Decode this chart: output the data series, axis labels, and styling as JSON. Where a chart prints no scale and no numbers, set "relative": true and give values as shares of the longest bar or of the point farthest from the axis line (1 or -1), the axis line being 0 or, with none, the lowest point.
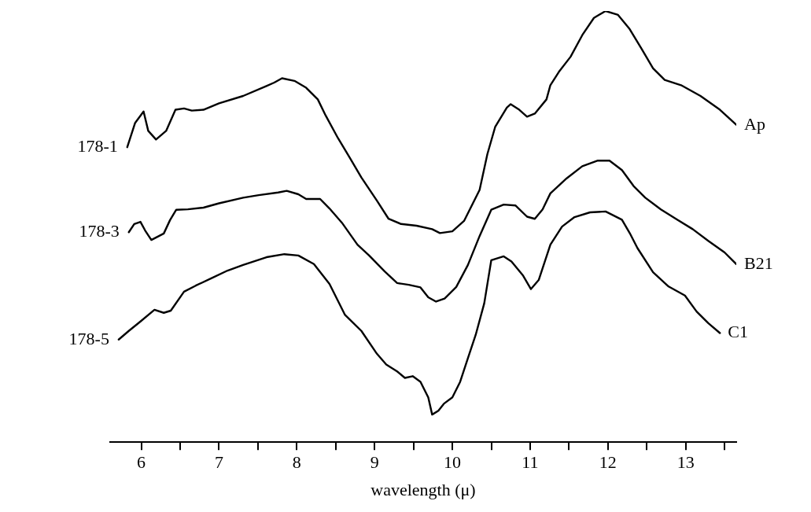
{
  "chart_data": {
    "type": "line",
    "relative": true,
    "xlabel": "wavelength (μ)",
    "xlim": [
      5.6,
      13.65
    ],
    "xticks": [
      6,
      {
        "value": 6.5,
        "label": null
      },
      7,
      {
        "value": 7.5,
        "label": null
      },
      8,
      {
        "value": 8.5,
        "label": null
      },
      9,
      {
        "value": 9.5,
        "label": null
      },
      10,
      {
        "value": 10.5,
        "label": null
      },
      11,
      {
        "value": 11.5,
        "label": null
      },
      12,
      {
        "value": 12.5,
        "label": null
      },
      13,
      {
        "value": 13.5,
        "label": null
      }
    ],
    "tick_labels": "x",
    "grid": false,
    "legend": false,
    "marker": "none",
    "line_style": "solid",
    "annotations": [
      "178-1",
      "178-3",
      "178-5"
    ],
    "series": [
      {
        "name": "Ap",
        "color": "#000000",
        "x": [
          5.82,
          5.92,
          6.03,
          6.09,
          6.19,
          6.32,
          6.44,
          6.55,
          6.65,
          6.8,
          7.0,
          7.31,
          7.61,
          7.71,
          7.81,
          7.97,
          8.12,
          8.27,
          8.37,
          8.53,
          8.68,
          8.83,
          9.03,
          9.18,
          9.34,
          9.54,
          9.74,
          9.84,
          10.0,
          10.15,
          10.35,
          10.45,
          10.55,
          10.7,
          10.75,
          10.86,
          10.96,
          11.06,
          11.21,
          11.26,
          11.37,
          11.52,
          11.67,
          11.82,
          11.97,
          12.13,
          12.28,
          12.43,
          12.58,
          12.73,
          12.94,
          13.19,
          13.44,
          13.65
        ],
        "values": [
          0.684,
          0.74,
          0.767,
          0.722,
          0.702,
          0.722,
          0.771,
          0.774,
          0.769,
          0.771,
          0.786,
          0.803,
          0.826,
          0.834,
          0.844,
          0.838,
          0.822,
          0.795,
          0.758,
          0.705,
          0.66,
          0.614,
          0.56,
          0.518,
          0.506,
          0.502,
          0.494,
          0.485,
          0.489,
          0.513,
          0.585,
          0.668,
          0.731,
          0.776,
          0.784,
          0.771,
          0.755,
          0.762,
          0.795,
          0.828,
          0.859,
          0.894,
          0.944,
          0.984,
          1.0,
          0.991,
          0.958,
          0.913,
          0.867,
          0.84,
          0.828,
          0.803,
          0.771,
          0.736
        ]
      },
      {
        "name": "B21",
        "color": "#000000",
        "x": [
          5.84,
          5.91,
          5.99,
          6.05,
          6.13,
          6.29,
          6.37,
          6.45,
          6.6,
          6.8,
          7.0,
          7.31,
          7.51,
          7.76,
          7.87,
          8.02,
          8.12,
          8.3,
          8.42,
          8.58,
          8.78,
          8.93,
          9.13,
          9.29,
          9.44,
          9.59,
          9.69,
          9.79,
          9.9,
          10.05,
          10.2,
          10.35,
          10.5,
          10.66,
          10.81,
          10.96,
          11.06,
          11.16,
          11.26,
          11.47,
          11.67,
          11.87,
          12.02,
          12.18,
          12.33,
          12.48,
          12.68,
          12.89,
          13.09,
          13.29,
          13.5,
          13.65
        ],
        "values": [
          0.487,
          0.506,
          0.511,
          0.491,
          0.469,
          0.484,
          0.515,
          0.539,
          0.54,
          0.544,
          0.554,
          0.567,
          0.573,
          0.579,
          0.583,
          0.575,
          0.564,
          0.564,
          0.542,
          0.509,
          0.458,
          0.433,
          0.396,
          0.369,
          0.365,
          0.359,
          0.336,
          0.326,
          0.333,
          0.36,
          0.411,
          0.478,
          0.539,
          0.551,
          0.549,
          0.523,
          0.518,
          0.54,
          0.577,
          0.612,
          0.64,
          0.653,
          0.653,
          0.631,
          0.594,
          0.567,
          0.54,
          0.516,
          0.494,
          0.467,
          0.44,
          0.413
        ]
      },
      {
        "name": "C1",
        "color": "#000000",
        "x": [
          5.71,
          5.84,
          5.99,
          6.17,
          6.29,
          6.38,
          6.55,
          6.7,
          6.9,
          7.11,
          7.31,
          7.61,
          7.84,
          8.02,
          8.22,
          8.42,
          8.62,
          8.83,
          9.03,
          9.15,
          9.29,
          9.39,
          9.49,
          9.59,
          9.69,
          9.74,
          9.82,
          9.89,
          10.0,
          10.1,
          10.2,
          10.3,
          10.41,
          10.5,
          10.66,
          10.76,
          10.91,
          11.01,
          11.11,
          11.26,
          11.41,
          11.57,
          11.77,
          11.97,
          12.18,
          12.28,
          12.38,
          12.58,
          12.78,
          12.99,
          13.14,
          13.29,
          13.44
        ],
        "values": [
          0.238,
          0.258,
          0.28,
          0.307,
          0.3,
          0.305,
          0.349,
          0.363,
          0.38,
          0.398,
          0.411,
          0.429,
          0.436,
          0.433,
          0.413,
          0.367,
          0.295,
          0.258,
          0.205,
          0.18,
          0.164,
          0.149,
          0.153,
          0.14,
          0.104,
          0.064,
          0.073,
          0.089,
          0.104,
          0.14,
          0.195,
          0.249,
          0.322,
          0.422,
          0.431,
          0.419,
          0.386,
          0.355,
          0.376,
          0.458,
          0.5,
          0.522,
          0.533,
          0.535,
          0.516,
          0.485,
          0.45,
          0.394,
          0.361,
          0.34,
          0.303,
          0.276,
          0.253
        ]
      }
    ]
  }
}
